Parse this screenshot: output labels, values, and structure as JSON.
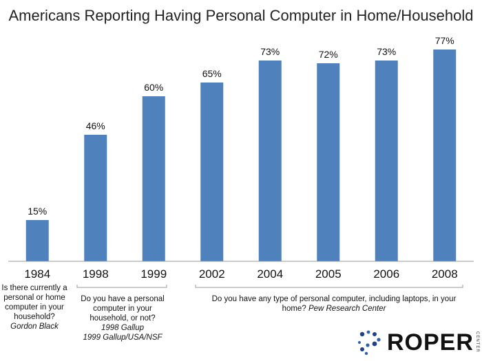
{
  "chart_data": {
    "type": "bar",
    "title": "Americans Reporting Having Personal Computer in Home/Household",
    "categories": [
      "1984",
      "1998",
      "1999",
      "2002",
      "2004",
      "2005",
      "2006",
      "2008"
    ],
    "values": [
      15,
      46,
      60,
      65,
      73,
      72,
      73,
      77
    ],
    "value_labels": [
      "15%",
      "46%",
      "60%",
      "65%",
      "73%",
      "72%",
      "73%",
      "77%"
    ],
    "ylim": [
      0,
      80
    ],
    "bar_color": "#4f81bd",
    "grid": false
  },
  "notes": {
    "n1984": {
      "question": "Is there currently a personal or home computer in your household?",
      "source": "Gordon Black"
    },
    "gallup": {
      "question": "Do you have a personal computer in your household, or not?",
      "source1": "1998 Gallup",
      "source2": "1999 Gallup/USA/NSF"
    },
    "pew": {
      "question": "Do you have any type of personal computer, including laptops, in your home?",
      "source": "Pew Research Center"
    }
  },
  "logo": {
    "name": "ROPER",
    "sub": "CENTER",
    "icon": "roper-dots-icon"
  }
}
